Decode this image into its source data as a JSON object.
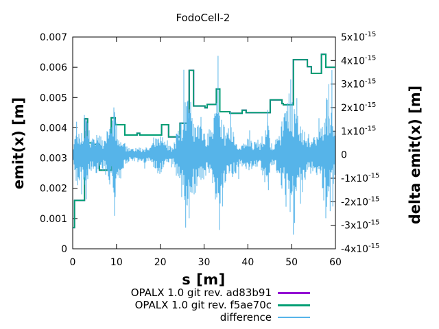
{
  "chart_data": {
    "type": "line",
    "title": "FodoCell-2",
    "xlabel": "s [m]",
    "ylabel_left": "emit(x) [m]",
    "ylabel_right": "delta emit(x) [m]",
    "x_range": [
      0,
      60
    ],
    "x_ticks": [
      0,
      10,
      20,
      30,
      40,
      50,
      60
    ],
    "y_left_range": [
      0,
      0.007
    ],
    "y_left_ticks": [
      {
        "label": "0",
        "v": 0
      },
      {
        "label": "0.001",
        "v": 0.001
      },
      {
        "label": "0.002",
        "v": 0.002
      },
      {
        "label": "0.003",
        "v": 0.003
      },
      {
        "label": "0.004",
        "v": 0.004
      },
      {
        "label": "0.005",
        "v": 0.005
      },
      {
        "label": "0.006",
        "v": 0.006
      },
      {
        "label": "0.007",
        "v": 0.007
      }
    ],
    "y_right_range_1e15": [
      -4,
      5
    ],
    "y_right_ticks": [
      {
        "base": "5x10",
        "exp": "-15",
        "v": 5
      },
      {
        "base": "4x10",
        "exp": "-15",
        "v": 4
      },
      {
        "base": "3x10",
        "exp": "-15",
        "v": 3
      },
      {
        "base": "2x10",
        "exp": "-15",
        "v": 2
      },
      {
        "base": "1x10",
        "exp": "-15",
        "v": 1
      },
      {
        "base": "0",
        "exp": "",
        "v": 0
      },
      {
        "base": "-1x10",
        "exp": "-15",
        "v": -1
      },
      {
        "base": "-2x10",
        "exp": "-15",
        "v": -2
      },
      {
        "base": "-3x10",
        "exp": "-15",
        "v": -3
      },
      {
        "base": "-4x10",
        "exp": "-15",
        "v": -4
      }
    ],
    "grid": false,
    "legend_position": "below-right",
    "series": [
      {
        "label": "OPALX 1.0 git rev. ad83b91",
        "color": "#9400d3",
        "axis": "left",
        "type": "step",
        "data_ref": "emit_steps",
        "note": "completely overlapped by the f5ae70c curve in the plot"
      },
      {
        "label": "OPALX 1.0 git rev. f5ae70c",
        "color": "#009e73",
        "axis": "left",
        "type": "step",
        "data_ref": "emit_steps"
      },
      {
        "label": "difference",
        "color": "#56b4e9",
        "axis": "right",
        "type": "noise",
        "data_ref": "difference"
      }
    ],
    "emit_steps": [
      [
        0,
        0.0007
      ],
      [
        0.4,
        0.0016
      ],
      [
        2.7,
        0.0043
      ],
      [
        3.4,
        0.0035
      ],
      [
        4.8,
        0.00345
      ],
      [
        6.1,
        0.0026
      ],
      [
        8.8,
        0.00433
      ],
      [
        9.7,
        0.0041
      ],
      [
        11.9,
        0.00376
      ],
      [
        14.7,
        0.00382
      ],
      [
        15.3,
        0.00376
      ],
      [
        20.3,
        0.0041
      ],
      [
        21.9,
        0.0037
      ],
      [
        24.5,
        0.00415
      ],
      [
        26.6,
        0.0059
      ],
      [
        27.6,
        0.00472
      ],
      [
        30.2,
        0.00466
      ],
      [
        30.7,
        0.00477
      ],
      [
        32.8,
        0.00528
      ],
      [
        33.6,
        0.00453
      ],
      [
        35.9,
        0.00448
      ],
      [
        38.7,
        0.00458
      ],
      [
        39.6,
        0.0045
      ],
      [
        45.1,
        0.00492
      ],
      [
        47.8,
        0.0048
      ],
      [
        48.1,
        0.00476
      ],
      [
        50.4,
        0.00625
      ],
      [
        53.6,
        0.00602
      ],
      [
        54.5,
        0.0058
      ],
      [
        56.8,
        0.00643
      ],
      [
        57.8,
        0.006
      ],
      [
        60,
        0.006
      ]
    ],
    "difference": {
      "units": "1e-15 m, centered on 0 of the right axis",
      "envelope": [
        [
          0,
          0.3
        ],
        [
          0.5,
          1.0
        ],
        [
          1,
          1.3
        ],
        [
          2,
          1.0
        ],
        [
          2.7,
          1.4
        ],
        [
          3.2,
          1.6
        ],
        [
          4,
          0.9
        ],
        [
          5,
          0.8
        ],
        [
          6,
          1.0
        ],
        [
          7,
          0.7
        ],
        [
          8,
          1.1
        ],
        [
          9,
          1.5
        ],
        [
          9.6,
          2.0
        ],
        [
          10,
          1.4
        ],
        [
          11,
          1.0
        ],
        [
          12,
          0.45
        ],
        [
          13,
          0.3
        ],
        [
          14,
          0.3
        ],
        [
          15,
          0.3
        ],
        [
          16,
          0.35
        ],
        [
          17,
          0.35
        ],
        [
          18,
          0.4
        ],
        [
          19,
          0.7
        ],
        [
          20,
          1.0
        ],
        [
          21,
          0.6
        ],
        [
          21.7,
          0.35
        ],
        [
          23,
          0.45
        ],
        [
          24,
          1.2
        ],
        [
          25,
          2.0
        ],
        [
          25.8,
          2.5
        ],
        [
          26.5,
          2.3
        ],
        [
          27,
          2.0
        ],
        [
          28,
          1.7
        ],
        [
          29,
          1.3
        ],
        [
          30,
          1.1
        ],
        [
          31,
          0.9
        ],
        [
          32,
          1.3
        ],
        [
          33,
          2.5
        ],
        [
          33.6,
          2.3
        ],
        [
          34,
          1.6
        ],
        [
          35,
          1.1
        ],
        [
          36,
          1.3
        ],
        [
          37,
          0.9
        ],
        [
          38,
          0.6
        ],
        [
          39,
          0.7
        ],
        [
          40,
          0.7
        ],
        [
          41,
          0.6
        ],
        [
          42,
          0.7
        ],
        [
          43,
          0.6
        ],
        [
          44,
          1.4
        ],
        [
          44.6,
          1.5
        ],
        [
          45,
          0.7
        ],
        [
          46,
          0.5
        ],
        [
          47,
          0.9
        ],
        [
          48,
          1.6
        ],
        [
          49,
          2.2
        ],
        [
          50,
          2.8
        ],
        [
          51,
          2.0
        ],
        [
          52,
          1.4
        ],
        [
          53,
          1.1
        ],
        [
          54,
          0.9
        ],
        [
          55,
          0.8
        ],
        [
          56,
          1.0
        ],
        [
          57,
          1.6
        ],
        [
          58,
          2.4
        ],
        [
          59,
          1.9
        ],
        [
          60,
          1.1
        ]
      ],
      "spikes": [
        [
          0.9,
          1.4
        ],
        [
          1.1,
          -1.3
        ],
        [
          3.0,
          1.5
        ],
        [
          3.1,
          -1.9
        ],
        [
          9.55,
          -2.6
        ],
        [
          9.7,
          1.5
        ],
        [
          24.9,
          -1.8
        ],
        [
          25.8,
          -3.1
        ],
        [
          26.3,
          2.3
        ],
        [
          26.6,
          -2.7
        ],
        [
          29.3,
          1.6
        ],
        [
          32.9,
          2.2
        ],
        [
          33.2,
          4.2
        ],
        [
          33.5,
          -3.2
        ],
        [
          34.2,
          -2.2
        ],
        [
          36.1,
          1.8
        ],
        [
          44.5,
          1.9
        ],
        [
          44.7,
          -1.5
        ],
        [
          49.4,
          2.6
        ],
        [
          49.8,
          3.2
        ],
        [
          50.4,
          -3.4
        ],
        [
          50.7,
          -2.9
        ],
        [
          51.2,
          2.4
        ],
        [
          57.9,
          2.4
        ],
        [
          58.5,
          3.0
        ],
        [
          58.8,
          -2.4
        ],
        [
          59.2,
          3.6
        ],
        [
          59.4,
          -2.2
        ]
      ]
    }
  }
}
